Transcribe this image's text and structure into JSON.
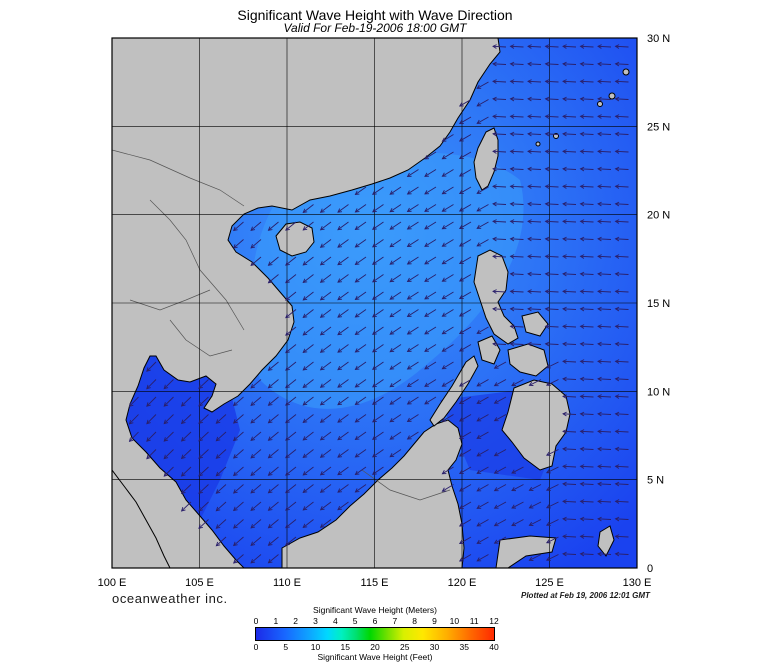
{
  "title": "Significant Wave Height with Wave Direction",
  "subtitle": "Valid For Feb-19-2006 18:00 GMT",
  "axes": {
    "lon_labels": [
      "100 E",
      "105 E",
      "110 E",
      "115 E",
      "120 E",
      "125 E",
      "130 E"
    ],
    "lat_labels": [
      "30 N",
      "25 N",
      "20 N",
      "15 N",
      "10 N",
      "5 N",
      "0"
    ]
  },
  "map_extent": {
    "lon_min": 100,
    "lon_max": 130,
    "lat_min": 0,
    "lat_max": 30
  },
  "colors": {
    "land": "#c0c0c0",
    "coast": "#000000",
    "sea_dark": "#1a3cf0",
    "sea_mid": "#2a6cf6",
    "sea_light": "#3a92f8",
    "arrow": "#2a1f6a"
  },
  "brand": "oceanweather inc.",
  "plotted": "Plotted at Feb 19, 2006 12:01 GMT",
  "colorbar": {
    "meters_title": "Significant Wave Height (Meters)",
    "feet_title": "Significant Wave Height (Feet)",
    "meters_ticks": [
      "0",
      "1",
      "2",
      "3",
      "4",
      "5",
      "6",
      "7",
      "8",
      "9",
      "10",
      "11",
      "12"
    ],
    "feet_ticks": [
      "0",
      "5",
      "10",
      "15",
      "20",
      "25",
      "30",
      "35",
      "40"
    ]
  }
}
